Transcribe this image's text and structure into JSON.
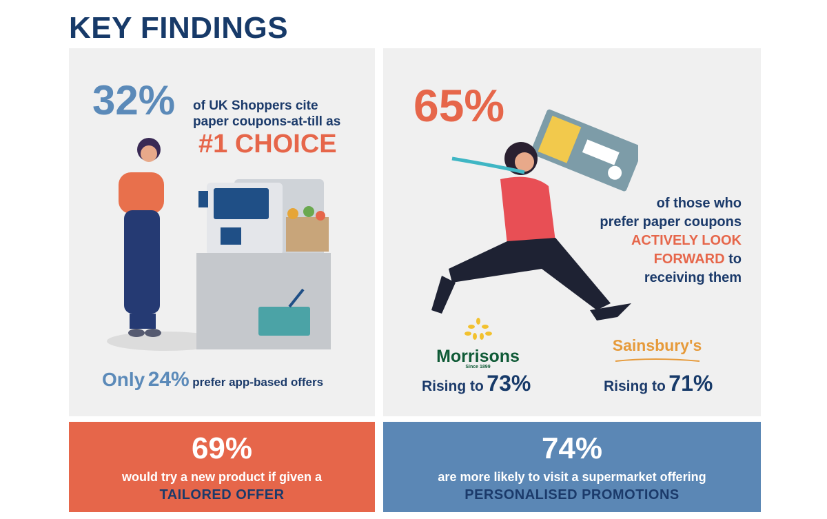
{
  "title": "KEY FINDINGS",
  "panel_left": {
    "stat": "32%",
    "line1": "of UK Shoppers cite",
    "line2": "paper coupons-at-till as",
    "highlight": "#1 CHOICE",
    "footer_prefix": "Only",
    "footer_stat": "24%",
    "footer_suffix": "prefer app-based offers"
  },
  "panel_right": {
    "stat": "65%",
    "line1": "of those who",
    "line2": "prefer paper coupons",
    "highlight1": "ACTIVELY LOOK",
    "highlight2": "FORWARD",
    "line3_suffix": "to",
    "line4": "receiving them",
    "retailers": [
      {
        "name": "Morrisons",
        "tagline": "Since 1899",
        "prefix": "Rising to",
        "stat": "73%"
      },
      {
        "name": "Sainsbury's",
        "prefix": "Rising to",
        "stat": "71%"
      }
    ]
  },
  "box_left": {
    "stat": "69%",
    "line": "would try a new product if given a",
    "highlight": "TAILORED OFFER"
  },
  "box_right": {
    "stat": "74%",
    "line": "are more likely to visit a supermarket offering",
    "highlight": "PERSONALISED PROMOTIONS"
  },
  "colors": {
    "navy": "#173a69",
    "blue": "#5b8ab9",
    "orange": "#e6664a",
    "panel": "#f0f0f0"
  }
}
